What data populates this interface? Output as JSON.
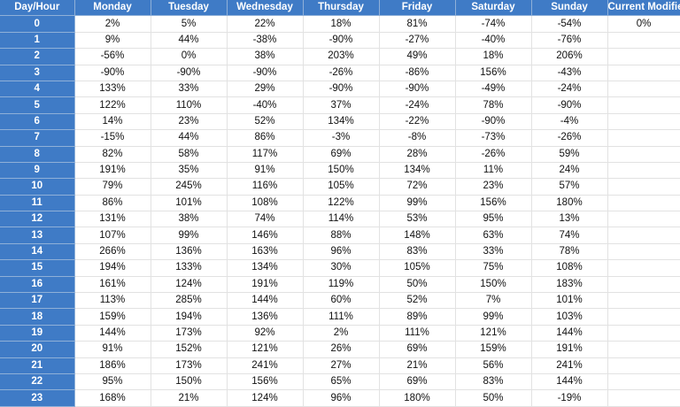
{
  "colors": {
    "header_bg": "#3f7bc6",
    "hour_bg": "#3f7bc6",
    "cell_bg": "#ffffff",
    "text": "#111111",
    "header_text": "#ffffff"
  },
  "columns": [
    "Day/Hour",
    "Monday",
    "Tuesday",
    "Wednesday",
    "Thursday",
    "Friday",
    "Saturday",
    "Sunday",
    "Current Modifier"
  ],
  "rows": [
    {
      "hour": "0",
      "values": [
        "2%",
        "5%",
        "22%",
        "18%",
        "81%",
        "-74%",
        "-54%"
      ],
      "modifier": "0%"
    },
    {
      "hour": "1",
      "values": [
        "9%",
        "44%",
        "-38%",
        "-90%",
        "-27%",
        "-40%",
        "-76%"
      ],
      "modifier": ""
    },
    {
      "hour": "2",
      "values": [
        "-56%",
        "0%",
        "38%",
        "203%",
        "49%",
        "18%",
        "206%"
      ],
      "modifier": ""
    },
    {
      "hour": "3",
      "values": [
        "-90%",
        "-90%",
        "-90%",
        "-26%",
        "-86%",
        "156%",
        "-43%"
      ],
      "modifier": ""
    },
    {
      "hour": "4",
      "values": [
        "133%",
        "33%",
        "29%",
        "-90%",
        "-90%",
        "-49%",
        "-24%"
      ],
      "modifier": ""
    },
    {
      "hour": "5",
      "values": [
        "122%",
        "110%",
        "-40%",
        "37%",
        "-24%",
        "78%",
        "-90%"
      ],
      "modifier": ""
    },
    {
      "hour": "6",
      "values": [
        "14%",
        "23%",
        "52%",
        "134%",
        "-22%",
        "-90%",
        "-4%"
      ],
      "modifier": ""
    },
    {
      "hour": "7",
      "values": [
        "-15%",
        "44%",
        "86%",
        "-3%",
        "-8%",
        "-73%",
        "-26%"
      ],
      "modifier": ""
    },
    {
      "hour": "8",
      "values": [
        "82%",
        "58%",
        "117%",
        "69%",
        "28%",
        "-26%",
        "59%"
      ],
      "modifier": ""
    },
    {
      "hour": "9",
      "values": [
        "191%",
        "35%",
        "91%",
        "150%",
        "134%",
        "11%",
        "24%"
      ],
      "modifier": ""
    },
    {
      "hour": "10",
      "values": [
        "79%",
        "245%",
        "116%",
        "105%",
        "72%",
        "23%",
        "57%"
      ],
      "modifier": ""
    },
    {
      "hour": "11",
      "values": [
        "86%",
        "101%",
        "108%",
        "122%",
        "99%",
        "156%",
        "180%"
      ],
      "modifier": ""
    },
    {
      "hour": "12",
      "values": [
        "131%",
        "38%",
        "74%",
        "114%",
        "53%",
        "95%",
        "13%"
      ],
      "modifier": ""
    },
    {
      "hour": "13",
      "values": [
        "107%",
        "99%",
        "146%",
        "88%",
        "148%",
        "63%",
        "74%"
      ],
      "modifier": ""
    },
    {
      "hour": "14",
      "values": [
        "266%",
        "136%",
        "163%",
        "96%",
        "83%",
        "33%",
        "78%"
      ],
      "modifier": ""
    },
    {
      "hour": "15",
      "values": [
        "194%",
        "133%",
        "134%",
        "30%",
        "105%",
        "75%",
        "108%"
      ],
      "modifier": ""
    },
    {
      "hour": "16",
      "values": [
        "161%",
        "124%",
        "191%",
        "119%",
        "50%",
        "150%",
        "183%"
      ],
      "modifier": ""
    },
    {
      "hour": "17",
      "values": [
        "113%",
        "285%",
        "144%",
        "60%",
        "52%",
        "7%",
        "101%"
      ],
      "modifier": ""
    },
    {
      "hour": "18",
      "values": [
        "159%",
        "194%",
        "136%",
        "111%",
        "89%",
        "99%",
        "103%"
      ],
      "modifier": ""
    },
    {
      "hour": "19",
      "values": [
        "144%",
        "173%",
        "92%",
        "2%",
        "111%",
        "121%",
        "144%"
      ],
      "modifier": ""
    },
    {
      "hour": "20",
      "values": [
        "91%",
        "152%",
        "121%",
        "26%",
        "69%",
        "159%",
        "191%"
      ],
      "modifier": ""
    },
    {
      "hour": "21",
      "values": [
        "186%",
        "173%",
        "241%",
        "27%",
        "21%",
        "56%",
        "241%"
      ],
      "modifier": ""
    },
    {
      "hour": "22",
      "values": [
        "95%",
        "150%",
        "156%",
        "65%",
        "69%",
        "83%",
        "144%"
      ],
      "modifier": ""
    },
    {
      "hour": "23",
      "values": [
        "168%",
        "21%",
        "124%",
        "96%",
        "180%",
        "50%",
        "-19%"
      ],
      "modifier": ""
    }
  ]
}
